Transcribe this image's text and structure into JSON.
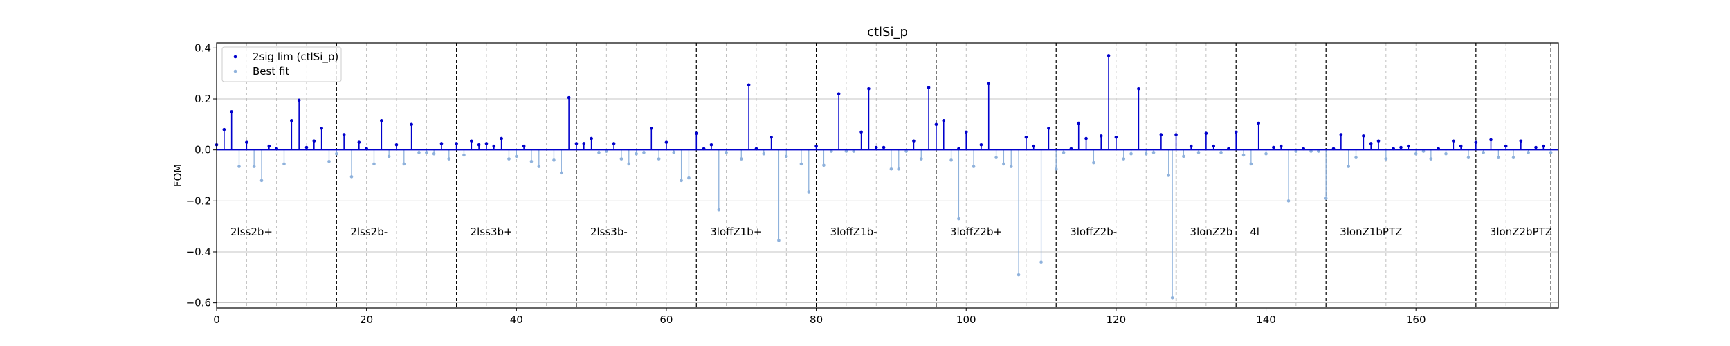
{
  "chart_data": {
    "type": "stem",
    "title": "ctlSi_p",
    "xlabel": "",
    "ylabel": "FOM",
    "xlim": [
      0,
      179
    ],
    "ylim": [
      -0.62,
      0.42
    ],
    "xticks": [
      0,
      20,
      40,
      60,
      80,
      100,
      120,
      140,
      160
    ],
    "yticks": [
      -0.6,
      -0.4,
      -0.2,
      0.0,
      0.2,
      0.4
    ],
    "ytick_labels": [
      "−0.6",
      "−0.4",
      "−0.2",
      "0.0",
      "0.2",
      "0.4"
    ],
    "grid": true,
    "legend_position": "upper-left",
    "colors": {
      "series1": "#0000cc",
      "series2": "#8fb2dc",
      "grid": "#b0b0b0",
      "divider": "#000000"
    },
    "series": [
      {
        "name": "2sig lim (ctlSi_p)",
        "values": [
          [
            0,
            0.02
          ],
          [
            1,
            0.08
          ],
          [
            2,
            0.15
          ],
          [
            4,
            0.03
          ],
          [
            7,
            0.015
          ],
          [
            8,
            0.005
          ],
          [
            10,
            0.115
          ],
          [
            11,
            0.195
          ],
          [
            12,
            0.01
          ],
          [
            13,
            0.035
          ],
          [
            14,
            0.085
          ],
          [
            17,
            0.06
          ],
          [
            19,
            0.03
          ],
          [
            20,
            0.005
          ],
          [
            22,
            0.115
          ],
          [
            24,
            0.02
          ],
          [
            26,
            0.1
          ],
          [
            30,
            0.025
          ],
          [
            32,
            0.025
          ],
          [
            34,
            0.035
          ],
          [
            35,
            0.02
          ],
          [
            36,
            0.025
          ],
          [
            37,
            0.015
          ],
          [
            38,
            0.045
          ],
          [
            41,
            0.015
          ],
          [
            47,
            0.205
          ],
          [
            48,
            0.025
          ],
          [
            49,
            0.025
          ],
          [
            50,
            0.045
          ],
          [
            53,
            0.025
          ],
          [
            58,
            0.085
          ],
          [
            60,
            0.03
          ],
          [
            64,
            0.065
          ],
          [
            65,
            0.005
          ],
          [
            66,
            0.02
          ],
          [
            71,
            0.255
          ],
          [
            72,
            0.005
          ],
          [
            74,
            0.05
          ],
          [
            80,
            0.015
          ],
          [
            83,
            0.22
          ],
          [
            86,
            0.07
          ],
          [
            87,
            0.24
          ],
          [
            88,
            0.01
          ],
          [
            89,
            0.01
          ],
          [
            93,
            0.035
          ],
          [
            95,
            0.245
          ],
          [
            96,
            0.1
          ],
          [
            97,
            0.115
          ],
          [
            99,
            0.005
          ],
          [
            100,
            0.07
          ],
          [
            102,
            0.02
          ],
          [
            103,
            0.26
          ],
          [
            108,
            0.05
          ],
          [
            109,
            0.015
          ],
          [
            111,
            0.085
          ],
          [
            114,
            0.005
          ],
          [
            115,
            0.105
          ],
          [
            116,
            0.045
          ],
          [
            118,
            0.055
          ],
          [
            119,
            0.37
          ],
          [
            120,
            0.05
          ],
          [
            123,
            0.24
          ],
          [
            126,
            0.06
          ],
          [
            128,
            0.06
          ],
          [
            130,
            0.015
          ],
          [
            132,
            0.065
          ],
          [
            133,
            0.015
          ],
          [
            135,
            0.005
          ],
          [
            136,
            0.07
          ],
          [
            139,
            0.105
          ],
          [
            141,
            0.01
          ],
          [
            142,
            0.015
          ],
          [
            145,
            0.005
          ],
          [
            149,
            0.005
          ],
          [
            150,
            0.06
          ],
          [
            153,
            0.055
          ],
          [
            154,
            0.025
          ],
          [
            155,
            0.035
          ],
          [
            157,
            0.005
          ],
          [
            158,
            0.01
          ],
          [
            159,
            0.015
          ],
          [
            163,
            0.005
          ],
          [
            165,
            0.035
          ],
          [
            166,
            0.015
          ],
          [
            168,
            0.03
          ],
          [
            170,
            0.04
          ],
          [
            172,
            0.015
          ],
          [
            174,
            0.035
          ],
          [
            176,
            0.01
          ],
          [
            177,
            0.015
          ]
        ]
      },
      {
        "name": "Best fit",
        "values": [
          [
            3,
            -0.065
          ],
          [
            5,
            -0.065
          ],
          [
            6,
            -0.12
          ],
          [
            9,
            -0.055
          ],
          [
            15,
            -0.045
          ],
          [
            16,
            -0.015
          ],
          [
            18,
            -0.105
          ],
          [
            21,
            -0.055
          ],
          [
            23,
            -0.025
          ],
          [
            25,
            -0.055
          ],
          [
            27,
            -0.01
          ],
          [
            28,
            -0.01
          ],
          [
            29,
            -0.015
          ],
          [
            31,
            -0.035
          ],
          [
            33,
            -0.02
          ],
          [
            39,
            -0.035
          ],
          [
            40,
            -0.025
          ],
          [
            42,
            -0.045
          ],
          [
            43,
            -0.065
          ],
          [
            45,
            -0.04
          ],
          [
            46,
            -0.09
          ],
          [
            51,
            -0.01
          ],
          [
            52,
            -0.005
          ],
          [
            54,
            -0.035
          ],
          [
            55,
            -0.055
          ],
          [
            56,
            -0.015
          ],
          [
            57,
            -0.01
          ],
          [
            59,
            -0.035
          ],
          [
            61,
            -0.01
          ],
          [
            62,
            -0.12
          ],
          [
            63,
            -0.11
          ],
          [
            67,
            -0.235
          ],
          [
            68,
            -0.01
          ],
          [
            70,
            -0.035
          ],
          [
            73,
            -0.015
          ],
          [
            75,
            -0.355
          ],
          [
            76,
            -0.025
          ],
          [
            78,
            -0.055
          ],
          [
            79,
            -0.165
          ],
          [
            81,
            -0.06
          ],
          [
            82,
            -0.005
          ],
          [
            84,
            -0.005
          ],
          [
            85,
            -0.005
          ],
          [
            90,
            -0.075
          ],
          [
            91,
            -0.075
          ],
          [
            92,
            -0.005
          ],
          [
            94,
            -0.035
          ],
          [
            98,
            -0.04
          ],
          [
            99,
            -0.27
          ],
          [
            101,
            -0.065
          ],
          [
            104,
            -0.03
          ],
          [
            105,
            -0.055
          ],
          [
            106,
            -0.065
          ],
          [
            107,
            -0.49
          ],
          [
            110,
            -0.44
          ],
          [
            112,
            -0.075
          ],
          [
            113,
            -0.01
          ],
          [
            117,
            -0.05
          ],
          [
            121,
            -0.035
          ],
          [
            122,
            -0.015
          ],
          [
            124,
            -0.015
          ],
          [
            125,
            -0.01
          ],
          [
            127,
            -0.1
          ],
          [
            127.5,
            -0.58
          ],
          [
            129,
            -0.025
          ],
          [
            131,
            -0.01
          ],
          [
            134,
            -0.01
          ],
          [
            137,
            -0.02
          ],
          [
            138,
            -0.055
          ],
          [
            140,
            -0.015
          ],
          [
            143,
            -0.2
          ],
          [
            144,
            -0.005
          ],
          [
            146,
            -0.005
          ],
          [
            147,
            -0.005
          ],
          [
            148,
            -0.19
          ],
          [
            151,
            -0.065
          ],
          [
            152,
            -0.03
          ],
          [
            156,
            -0.035
          ],
          [
            160,
            -0.015
          ],
          [
            161,
            -0.005
          ],
          [
            162,
            -0.035
          ],
          [
            164,
            -0.015
          ],
          [
            167,
            -0.03
          ],
          [
            169,
            -0.01
          ],
          [
            171,
            -0.03
          ],
          [
            173,
            -0.03
          ],
          [
            175,
            -0.01
          ],
          [
            178,
            -0.01
          ]
        ]
      }
    ],
    "regions": [
      {
        "label": "2lss2b+",
        "start": 0,
        "end": 16
      },
      {
        "label": "2lss2b-",
        "start": 16,
        "end": 32
      },
      {
        "label": "2lss3b+",
        "start": 32,
        "end": 48
      },
      {
        "label": "2lss3b-",
        "start": 48,
        "end": 64
      },
      {
        "label": "3loffZ1b+",
        "start": 64,
        "end": 80
      },
      {
        "label": "3loffZ1b-",
        "start": 80,
        "end": 96
      },
      {
        "label": "3loffZ2b+",
        "start": 96,
        "end": 112
      },
      {
        "label": "3loffZ2b-",
        "start": 112,
        "end": 128
      },
      {
        "label": "3lonZ2b",
        "start": 128,
        "end": 136
      },
      {
        "label": "4l",
        "start": 136,
        "end": 148
      },
      {
        "label": "3lonZ1bPTZ",
        "start": 148,
        "end": 168
      },
      {
        "label": "3lonZ2bPTZ",
        "start": 168,
        "end": 178
      }
    ],
    "dividers": [
      16,
      32,
      48,
      64,
      80,
      96,
      112,
      128,
      136,
      148,
      168,
      178
    ]
  }
}
